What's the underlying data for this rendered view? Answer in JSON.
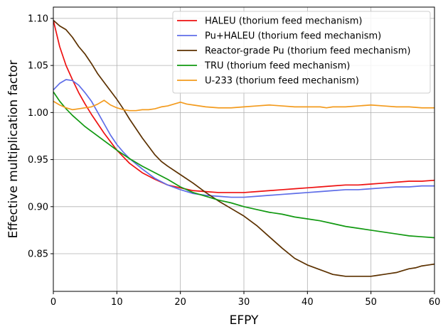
{
  "chart_data": {
    "type": "line",
    "title": "",
    "xlabel": "EFPY",
    "ylabel": "Effective multiplication factor",
    "xlim": [
      0,
      60
    ],
    "ylim": [
      0.81,
      1.112
    ],
    "xticks": [
      0,
      10,
      20,
      30,
      40,
      50,
      60
    ],
    "yticks": [
      0.85,
      0.9,
      0.95,
      1.0,
      1.05,
      1.1
    ],
    "xtick_labels": [
      "0",
      "10",
      "20",
      "30",
      "40",
      "50",
      "60"
    ],
    "ytick_labels": [
      "0.85",
      "0.90",
      "0.95",
      "1.00",
      "1.05",
      "1.10"
    ],
    "grid": true,
    "legend_position": "top-right",
    "series": [
      {
        "name": "HALEU (thorium feed mechanism)",
        "color": "#ee1111",
        "x": [
          0,
          1,
          2,
          3,
          4,
          5,
          6,
          8,
          10,
          12,
          14,
          16,
          18,
          20,
          22,
          24,
          26,
          28,
          30,
          32,
          34,
          36,
          38,
          40,
          42,
          44,
          46,
          48,
          50,
          52,
          54,
          56,
          58,
          60
        ],
        "y": [
          1.098,
          1.07,
          1.05,
          1.035,
          1.021,
          1.009,
          0.998,
          0.978,
          0.96,
          0.946,
          0.936,
          0.929,
          0.923,
          0.92,
          0.917,
          0.916,
          0.915,
          0.915,
          0.915,
          0.916,
          0.917,
          0.918,
          0.919,
          0.92,
          0.921,
          0.922,
          0.923,
          0.923,
          0.924,
          0.925,
          0.926,
          0.927,
          0.927,
          0.928
        ]
      },
      {
        "name": "Pu+HALEU (thorium feed mechanism)",
        "color": "#5f6ee8",
        "x": [
          0,
          1,
          2,
          3,
          4,
          5,
          6,
          7,
          8,
          9,
          10,
          11,
          12,
          14,
          16,
          18,
          20,
          22,
          24,
          26,
          28,
          30,
          32,
          34,
          36,
          38,
          40,
          42,
          44,
          46,
          48,
          50,
          52,
          54,
          56,
          58,
          60
        ],
        "y": [
          1.024,
          1.031,
          1.035,
          1.034,
          1.029,
          1.021,
          1.012,
          1.0,
          0.988,
          0.976,
          0.966,
          0.958,
          0.951,
          0.94,
          0.93,
          0.923,
          0.918,
          0.914,
          0.912,
          0.911,
          0.91,
          0.91,
          0.911,
          0.912,
          0.913,
          0.914,
          0.915,
          0.916,
          0.917,
          0.918,
          0.918,
          0.919,
          0.92,
          0.921,
          0.921,
          0.922,
          0.922
        ]
      },
      {
        "name": "Reactor-grade Pu (thorium feed mechanism)",
        "color": "#5c3100",
        "x": [
          0,
          1,
          2,
          3,
          4,
          5,
          6,
          7,
          8,
          9,
          10,
          11,
          12,
          14,
          16,
          17,
          18,
          20,
          22,
          24,
          26,
          28,
          30,
          32,
          34,
          36,
          38,
          40,
          42,
          44,
          45,
          46,
          47,
          48,
          49,
          50,
          51,
          52,
          53,
          54,
          55,
          56,
          57,
          58,
          59,
          60
        ],
        "y": [
          1.098,
          1.092,
          1.088,
          1.08,
          1.07,
          1.062,
          1.052,
          1.041,
          1.032,
          1.023,
          1.014,
          1.004,
          0.993,
          0.973,
          0.955,
          0.948,
          0.943,
          0.934,
          0.925,
          0.915,
          0.906,
          0.898,
          0.89,
          0.88,
          0.868,
          0.856,
          0.845,
          0.838,
          0.833,
          0.828,
          0.827,
          0.826,
          0.826,
          0.826,
          0.826,
          0.826,
          0.827,
          0.828,
          0.829,
          0.83,
          0.832,
          0.834,
          0.835,
          0.837,
          0.838,
          0.839
        ]
      },
      {
        "name": "TRU (thorium feed mechanism)",
        "color": "#119911",
        "x": [
          0,
          1,
          2,
          3,
          4,
          5,
          6,
          8,
          10,
          12,
          14,
          16,
          18,
          20,
          22,
          24,
          26,
          28,
          30,
          32,
          34,
          36,
          38,
          40,
          42,
          44,
          46,
          48,
          50,
          52,
          54,
          56,
          58,
          60
        ],
        "y": [
          1.022,
          1.012,
          1.004,
          0.997,
          0.991,
          0.985,
          0.98,
          0.97,
          0.96,
          0.951,
          0.943,
          0.936,
          0.929,
          0.921,
          0.915,
          0.911,
          0.907,
          0.904,
          0.9,
          0.897,
          0.894,
          0.892,
          0.889,
          0.887,
          0.885,
          0.882,
          0.879,
          0.877,
          0.875,
          0.873,
          0.871,
          0.869,
          0.868,
          0.867
        ]
      },
      {
        "name": "U-233 (thorium feed mechanism)",
        "color": "#f39b1e",
        "x": [
          0,
          1,
          2,
          3,
          4,
          5,
          6,
          7,
          8,
          9,
          10,
          11,
          12,
          13,
          14,
          15,
          16,
          17,
          18,
          19,
          20,
          21,
          22,
          24,
          26,
          28,
          30,
          32,
          34,
          36,
          38,
          40,
          42,
          43,
          44,
          46,
          48,
          50,
          52,
          54,
          56,
          58,
          60
        ],
        "y": [
          1.012,
          1.008,
          1.005,
          1.003,
          1.004,
          1.005,
          1.006,
          1.009,
          1.013,
          1.008,
          1.005,
          1.003,
          1.002,
          1.002,
          1.003,
          1.003,
          1.004,
          1.006,
          1.007,
          1.009,
          1.011,
          1.009,
          1.008,
          1.006,
          1.005,
          1.005,
          1.006,
          1.007,
          1.008,
          1.007,
          1.006,
          1.006,
          1.006,
          1.005,
          1.006,
          1.006,
          1.007,
          1.008,
          1.007,
          1.006,
          1.006,
          1.005,
          1.005
        ]
      }
    ]
  }
}
